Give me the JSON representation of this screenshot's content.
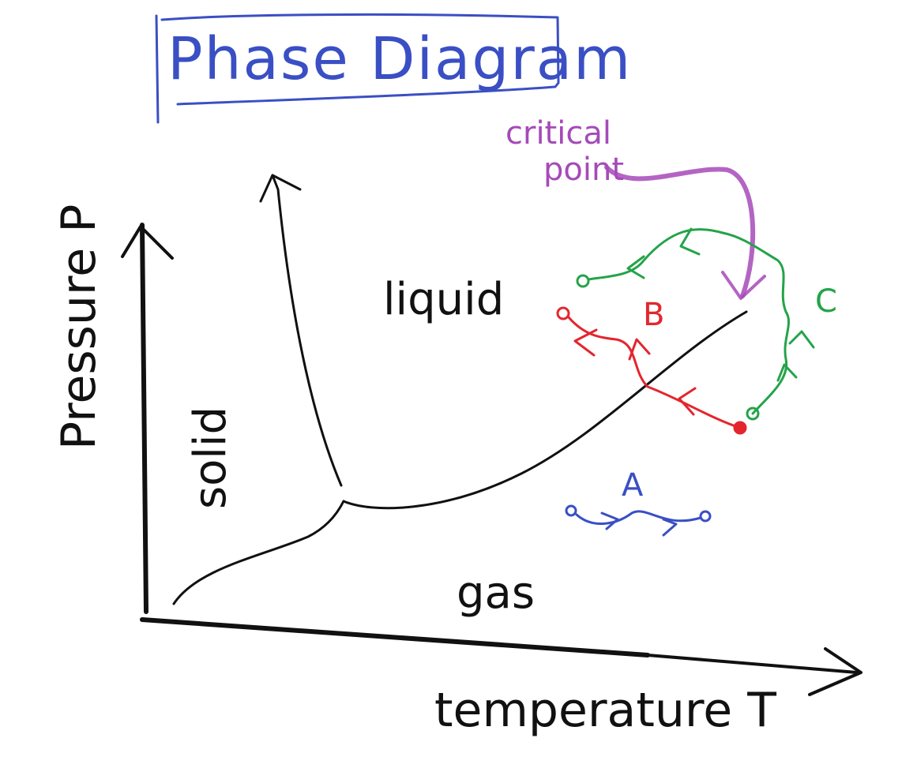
{
  "title": "Phase Diagram",
  "axes": {
    "y_label": "Pressure P",
    "x_label": "temperature T"
  },
  "regions": {
    "solid": "solid",
    "liquid": "liquid",
    "gas": "gas"
  },
  "critical_point_label": [
    "critical",
    "point"
  ],
  "paths": [
    {
      "label": "A",
      "color": "#3a4fc4"
    },
    {
      "label": "B",
      "color": "#e3262e"
    },
    {
      "label": "C",
      "color": "#24a34a"
    }
  ],
  "colors": {
    "ink": "#111111",
    "title": "#3a4fc4",
    "critical_point": "#a64ab8"
  }
}
